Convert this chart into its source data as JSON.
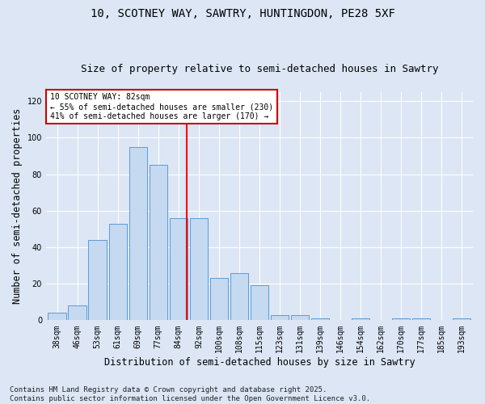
{
  "title_line1": "10, SCOTNEY WAY, SAWTRY, HUNTINGDON, PE28 5XF",
  "title_line2": "Size of property relative to semi-detached houses in Sawtry",
  "xlabel": "Distribution of semi-detached houses by size in Sawtry",
  "ylabel": "Number of semi-detached properties",
  "categories": [
    "38sqm",
    "46sqm",
    "53sqm",
    "61sqm",
    "69sqm",
    "77sqm",
    "84sqm",
    "92sqm",
    "100sqm",
    "108sqm",
    "115sqm",
    "123sqm",
    "131sqm",
    "139sqm",
    "146sqm",
    "154sqm",
    "162sqm",
    "170sqm",
    "177sqm",
    "185sqm",
    "193sqm"
  ],
  "values": [
    4,
    8,
    44,
    53,
    95,
    85,
    56,
    56,
    23,
    26,
    19,
    3,
    3,
    1,
    0,
    1,
    0,
    1,
    1,
    0,
    1
  ],
  "bar_color": "#c5d9f1",
  "bar_edge_color": "#5b9bd5",
  "vline_x": 6.42,
  "vline_color": "#ff0000",
  "annotation_text": "10 SCOTNEY WAY: 82sqm\n← 55% of semi-detached houses are smaller (230)\n41% of semi-detached houses are larger (170) →",
  "annotation_box_color": "#cc0000",
  "annotation_text_color": "#000000",
  "ylim": [
    0,
    125
  ],
  "yticks": [
    0,
    20,
    40,
    60,
    80,
    100,
    120
  ],
  "footer": "Contains HM Land Registry data © Crown copyright and database right 2025.\nContains public sector information licensed under the Open Government Licence v3.0.",
  "bg_color": "#dce6f5",
  "plot_bg_color": "#dce6f5",
  "grid_color": "#ffffff",
  "title_fontsize": 10,
  "subtitle_fontsize": 9,
  "tick_fontsize": 7,
  "label_fontsize": 8.5,
  "footer_fontsize": 6.5
}
